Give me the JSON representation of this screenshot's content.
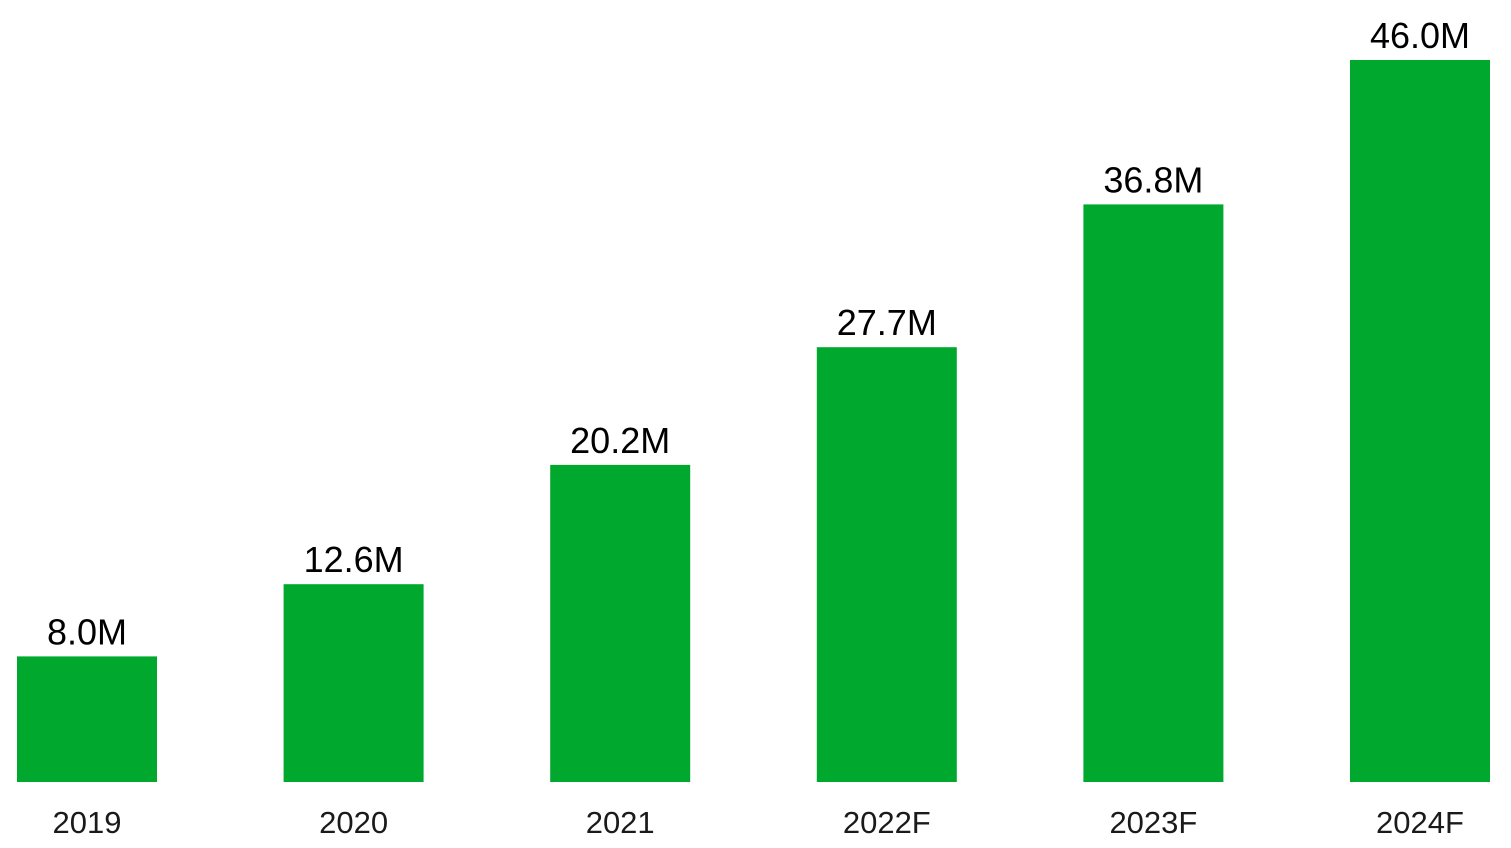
{
  "chart_data": {
    "type": "bar",
    "categories": [
      "2019",
      "2020",
      "2021",
      "2022F",
      "2023F",
      "2024F"
    ],
    "values": [
      8.0,
      12.6,
      20.2,
      27.7,
      36.8,
      46.0
    ],
    "data_labels": [
      "8.0M",
      "12.6M",
      "20.2M",
      "27.7M",
      "36.8M",
      "46.0M"
    ],
    "title": "",
    "xlabel": "",
    "ylabel": "",
    "ylim": [
      0,
      46.0
    ],
    "grid": false,
    "legend": "none",
    "bar_color": "#00A82D"
  }
}
